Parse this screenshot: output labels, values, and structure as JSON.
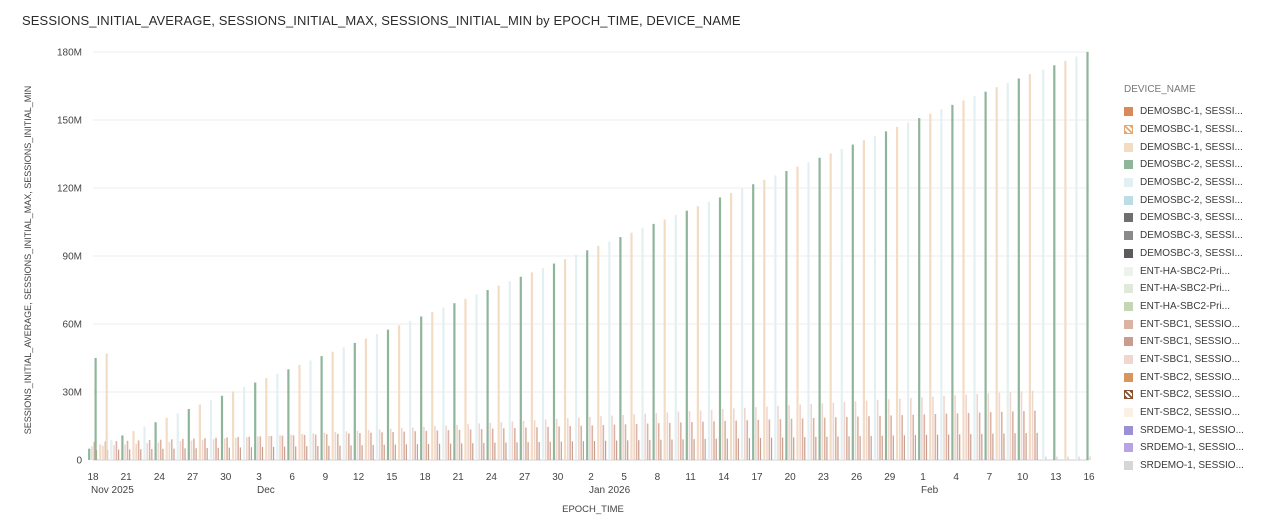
{
  "chart_data": {
    "type": "bar",
    "title": "SESSIONS_INITIAL_AVERAGE, SESSIONS_INITIAL_MAX, SESSIONS_INITIAL_MIN by EPOCH_TIME, DEVICE_NAME",
    "xlabel": "EPOCH_TIME",
    "ylabel": "SESSIONS_INITIAL_AVERAGE, SESSIONS_INITIAL_MAX, SESSIONS_INITIAL_MIN",
    "ylim": [
      0,
      180
    ],
    "y_ticks": [
      {
        "value": 0,
        "label": "0"
      },
      {
        "value": 30,
        "label": "30M"
      },
      {
        "value": 60,
        "label": "60M"
      },
      {
        "value": 90,
        "label": "90M"
      },
      {
        "value": 120,
        "label": "120M"
      },
      {
        "value": 150,
        "label": "150M"
      },
      {
        "value": 180,
        "label": "180M"
      }
    ],
    "x_range": [
      "2025-11-18",
      "2026-02-16"
    ],
    "x_ticks": [
      {
        "date": "2025-11-18",
        "label": "18",
        "sublabel": "Nov 2025"
      },
      {
        "date": "2025-11-21",
        "label": "21",
        "sublabel": ""
      },
      {
        "date": "2025-11-24",
        "label": "24",
        "sublabel": ""
      },
      {
        "date": "2025-11-27",
        "label": "27",
        "sublabel": ""
      },
      {
        "date": "2025-11-30",
        "label": "30",
        "sublabel": ""
      },
      {
        "date": "2025-12-03",
        "label": "3",
        "sublabel": "Dec"
      },
      {
        "date": "2025-12-06",
        "label": "6",
        "sublabel": ""
      },
      {
        "date": "2025-12-09",
        "label": "9",
        "sublabel": ""
      },
      {
        "date": "2025-12-12",
        "label": "12",
        "sublabel": ""
      },
      {
        "date": "2025-12-15",
        "label": "15",
        "sublabel": ""
      },
      {
        "date": "2025-12-18",
        "label": "18",
        "sublabel": ""
      },
      {
        "date": "2025-12-21",
        "label": "21",
        "sublabel": ""
      },
      {
        "date": "2025-12-24",
        "label": "24",
        "sublabel": ""
      },
      {
        "date": "2025-12-27",
        "label": "27",
        "sublabel": ""
      },
      {
        "date": "2025-12-30",
        "label": "30",
        "sublabel": ""
      },
      {
        "date": "2026-01-02",
        "label": "2",
        "sublabel": "Jan 2026"
      },
      {
        "date": "2026-01-05",
        "label": "5",
        "sublabel": ""
      },
      {
        "date": "2026-01-08",
        "label": "8",
        "sublabel": ""
      },
      {
        "date": "2026-01-11",
        "label": "11",
        "sublabel": ""
      },
      {
        "date": "2026-01-14",
        "label": "14",
        "sublabel": ""
      },
      {
        "date": "2026-01-17",
        "label": "17",
        "sublabel": ""
      },
      {
        "date": "2026-01-20",
        "label": "20",
        "sublabel": ""
      },
      {
        "date": "2026-01-23",
        "label": "23",
        "sublabel": ""
      },
      {
        "date": "2026-01-26",
        "label": "26",
        "sublabel": ""
      },
      {
        "date": "2026-01-29",
        "label": "29",
        "sublabel": ""
      },
      {
        "date": "2026-02-01",
        "label": "1",
        "sublabel": "Feb"
      },
      {
        "date": "2026-02-04",
        "label": "4",
        "sublabel": ""
      },
      {
        "date": "2026-02-07",
        "label": "7",
        "sublabel": ""
      },
      {
        "date": "2026-02-10",
        "label": "10",
        "sublabel": ""
      },
      {
        "date": "2026-02-13",
        "label": "13",
        "sublabel": ""
      },
      {
        "date": "2026-02-16",
        "label": "16",
        "sublabel": ""
      }
    ],
    "grid": true,
    "legend_title": "DEVICE_NAME",
    "legend_position": "right",
    "series": [
      {
        "name": "DEMOSBC-1, SESSI...",
        "color": "#d98a58",
        "pattern": "solid"
      },
      {
        "name": "DEMOSBC-1, SESSI...",
        "color": "#e3a878",
        "pattern": "hatched"
      },
      {
        "name": "DEMOSBC-1, SESSI...",
        "color": "#f3dcc4",
        "pattern": "solid"
      },
      {
        "name": "DEMOSBC-2, SESSI...",
        "color": "#8fb59b",
        "pattern": "solid"
      },
      {
        "name": "DEMOSBC-2, SESSI...",
        "color": "#e3f0f3",
        "pattern": "solid"
      },
      {
        "name": "DEMOSBC-2, SESSI...",
        "color": "#bcdde3",
        "pattern": "solid"
      },
      {
        "name": "DEMOSBC-3, SESSI...",
        "color": "#6f6f6f",
        "pattern": "solid"
      },
      {
        "name": "DEMOSBC-3, SESSI...",
        "color": "#8a8a8a",
        "pattern": "solid"
      },
      {
        "name": "DEMOSBC-3, SESSI...",
        "color": "#5b5b5b",
        "pattern": "solid"
      },
      {
        "name": "ENT-HA-SBC2-Pri...",
        "color": "#eef2ec",
        "pattern": "solid"
      },
      {
        "name": "ENT-HA-SBC2-Pri...",
        "color": "#dfe8d9",
        "pattern": "solid"
      },
      {
        "name": "ENT-HA-SBC2-Pri...",
        "color": "#c4d6b4",
        "pattern": "solid"
      },
      {
        "name": "ENT-SBC1, SESSIO...",
        "color": "#dcb3a3",
        "pattern": "solid"
      },
      {
        "name": "ENT-SBC1, SESSIO...",
        "color": "#c99d8d",
        "pattern": "solid"
      },
      {
        "name": "ENT-SBC1, SESSIO...",
        "color": "#efd6cf",
        "pattern": "solid"
      },
      {
        "name": "ENT-SBC2, SESSIO...",
        "color": "#d8955e",
        "pattern": "solid"
      },
      {
        "name": "ENT-SBC2, SESSIO...",
        "color": "#8a4f2e",
        "pattern": "hatched"
      },
      {
        "name": "ENT-SBC2, SESSIO...",
        "color": "#faf1e4",
        "pattern": "solid"
      },
      {
        "name": "SRDEMO-1, SESSIO...",
        "color": "#9b8fd6",
        "pattern": "solid"
      },
      {
        "name": "SRDEMO-1, SESSIO...",
        "color": "#b7a3e6",
        "pattern": "solid"
      },
      {
        "name": "SRDEMO-1, SESSIO...",
        "color": "#d6d6d6",
        "pattern": "solid"
      }
    ],
    "approx_trends": {
      "rising_max_series_millions": {
        "start": 5,
        "end": 180
      },
      "ent_sbc2_series_millions": {
        "start": 6,
        "end": 31
      },
      "ent_sbc1_series_millions": {
        "start": 8,
        "end": 22
      }
    }
  }
}
